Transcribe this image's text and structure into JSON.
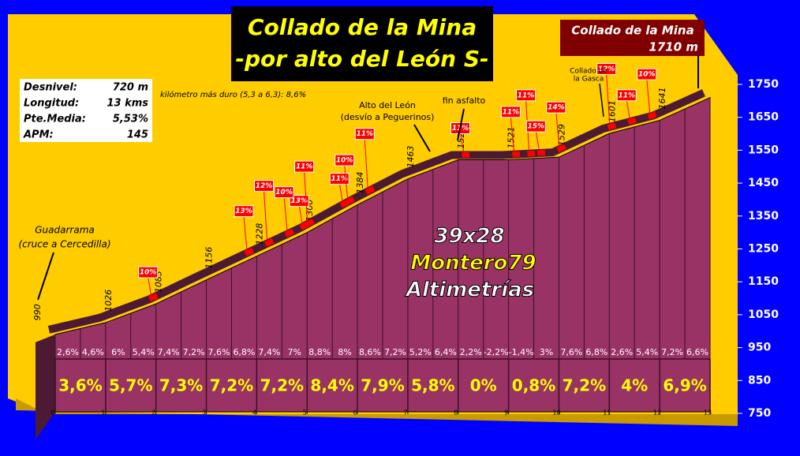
{
  "title": [
    "Collado de la Mina",
    "-por alto del León S-"
  ],
  "summit": {
    "name": "Collado de la Mina",
    "altitude": "1710 m"
  },
  "stats": [
    [
      "Desnivel:",
      "720 m"
    ],
    [
      "Longitud:",
      "13 kms"
    ],
    [
      "Pte.Media:",
      "5,53%"
    ],
    [
      "APM:",
      "145"
    ]
  ],
  "hardest_km": "kilómetro más duro (5,3 a 6,3):  8,6%",
  "places": {
    "start": [
      "Guadarrama",
      "(cruce a Cercedilla)"
    ],
    "alto": [
      "Alto del León",
      "(desvío a Peguerinos)"
    ],
    "fin": "fin asfalto",
    "gasca": [
      "Collado de",
      "la Gasca"
    ]
  },
  "watermark": [
    "39x28",
    "Montero79",
    "Altimetrías"
  ],
  "chart_data": {
    "type": "area",
    "x": [
      0,
      1,
      2,
      3,
      4,
      5,
      6,
      7,
      8,
      9,
      10,
      11,
      12,
      13
    ],
    "values": [
      990,
      1026,
      1083,
      1156,
      1228,
      1300,
      1384,
      1463,
      1521,
      1521,
      1529,
      1601,
      1641,
      1710
    ],
    "color": "#993366",
    "ramp_color": "#ff0000",
    "xlim": [
      0,
      13
    ],
    "xticks": [
      0,
      1,
      2,
      3,
      4,
      5,
      6,
      7,
      8,
      9,
      10,
      11,
      12,
      13
    ],
    "ylim": [
      750,
      1750
    ],
    "yticks": [
      750,
      850,
      950,
      1050,
      1150,
      1250,
      1350,
      1450,
      1550,
      1650,
      1750
    ],
    "half_km_grades": [
      "2,6%",
      "4,6%",
      "6%",
      "5,4%",
      "7,4%",
      "7,2%",
      "7,6%",
      "6,8%",
      "7,4%",
      "7%",
      "8,8%",
      "8%",
      "8,6%",
      "7,2%",
      "5,2%",
      "6,4%",
      "2,2%",
      "-2,2%",
      "-1,4%",
      "3%",
      "7,6%",
      "6,8%",
      "2,6%",
      "5,4%",
      "7,2%",
      "6,6%"
    ],
    "km_grades": [
      "3,6%",
      "5,7%",
      "7,3%",
      "7,2%",
      "7,2%",
      "8,4%",
      "7,9%",
      "5,8%",
      "0%",
      "0,8%",
      "7,2%",
      "4%",
      "6,9%"
    ],
    "steep_ramps": [
      {
        "km": 2.0,
        "label": "10%"
      },
      {
        "km": 3.9,
        "label": "13%"
      },
      {
        "km": 4.3,
        "label": "12%"
      },
      {
        "km": 5.0,
        "label": "13%"
      },
      {
        "km": 4.7,
        "label": "10%"
      },
      {
        "km": 5.1,
        "label": "11%"
      },
      {
        "km": 5.8,
        "label": "11%"
      },
      {
        "km": 5.9,
        "label": "10%"
      },
      {
        "km": 6.3,
        "label": "11%"
      },
      {
        "km": 8.2,
        "label": "11%"
      },
      {
        "km": 9.2,
        "label": "11%"
      },
      {
        "km": 9.5,
        "label": "11%"
      },
      {
        "km": 9.7,
        "label": "15%"
      },
      {
        "km": 10.1,
        "label": "14%"
      },
      {
        "km": 11.1,
        "label": "12%"
      },
      {
        "km": 11.5,
        "label": "11%"
      },
      {
        "km": 11.9,
        "label": "10%"
      }
    ]
  }
}
